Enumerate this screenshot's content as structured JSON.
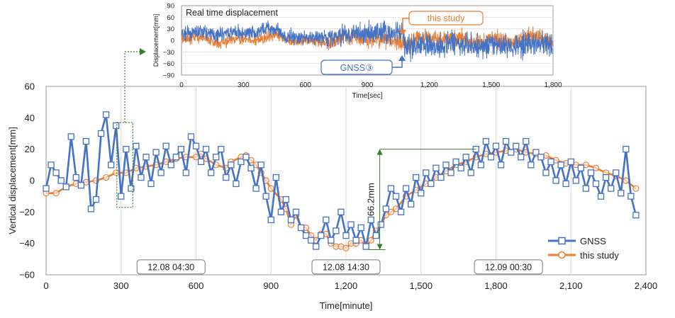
{
  "chart_data": [
    {
      "type": "line",
      "title": "",
      "xlabel": "Time[minute]",
      "ylabel": "Vertical displacement[mm]",
      "xlim": [
        0,
        2400
      ],
      "ylim": [
        -60,
        60
      ],
      "x_ticks": [
        "0",
        "300",
        "600",
        "900",
        "1,200",
        "1,500",
        "1,800",
        "2,100",
        "2,400"
      ],
      "y_ticks": [
        "60",
        "40",
        "20",
        "0",
        "−20",
        "−40",
        "−60"
      ],
      "grid": "vertical",
      "legend_position": "bottom-right",
      "series": [
        {
          "name": "GNSS",
          "color": "#4472C4",
          "marker": "square",
          "points": [
            [
              0,
              -5
            ],
            [
              20,
              10
            ],
            [
              40,
              5
            ],
            [
              60,
              0
            ],
            [
              80,
              -4
            ],
            [
              100,
              28
            ],
            [
              120,
              2
            ],
            [
              140,
              -3
            ],
            [
              160,
              25
            ],
            [
              180,
              -18
            ],
            [
              200,
              -12
            ],
            [
              220,
              30
            ],
            [
              240,
              42
            ],
            [
              260,
              10
            ],
            [
              280,
              35
            ],
            [
              300,
              -10
            ],
            [
              320,
              20
            ],
            [
              340,
              -5
            ],
            [
              360,
              22
            ],
            [
              380,
              2
            ],
            [
              400,
              15
            ],
            [
              420,
              -2
            ],
            [
              440,
              18
            ],
            [
              460,
              5
            ],
            [
              480,
              22
            ],
            [
              500,
              10
            ],
            [
              520,
              15
            ],
            [
              540,
              20
            ],
            [
              560,
              5
            ],
            [
              580,
              28
            ],
            [
              600,
              22
            ],
            [
              620,
              12
            ],
            [
              640,
              20
            ],
            [
              660,
              5
            ],
            [
              680,
              15
            ],
            [
              700,
              20
            ],
            [
              720,
              2
            ],
            [
              740,
              10
            ],
            [
              760,
              -2
            ],
            [
              780,
              12
            ],
            [
              800,
              15
            ],
            [
              820,
              8
            ],
            [
              840,
              -5
            ],
            [
              860,
              10
            ],
            [
              880,
              -10
            ],
            [
              900,
              -25
            ],
            [
              920,
              2
            ],
            [
              940,
              -20
            ],
            [
              960,
              -12
            ],
            [
              980,
              -25
            ],
            [
              1000,
              -20
            ],
            [
              1020,
              -30
            ],
            [
              1040,
              -35
            ],
            [
              1060,
              -38
            ],
            [
              1080,
              -42
            ],
            [
              1100,
              -35
            ],
            [
              1120,
              -25
            ],
            [
              1140,
              -38
            ],
            [
              1160,
              -32
            ],
            [
              1180,
              -20
            ],
            [
              1200,
              -35
            ],
            [
              1220,
              -28
            ],
            [
              1240,
              -38
            ],
            [
              1260,
              -30
            ],
            [
              1280,
              -42
            ],
            [
              1300,
              -25
            ],
            [
              1320,
              -35
            ],
            [
              1340,
              -28
            ],
            [
              1360,
              -18
            ],
            [
              1380,
              -5
            ],
            [
              1400,
              -10
            ],
            [
              1420,
              -20
            ],
            [
              1440,
              -5
            ],
            [
              1460,
              -15
            ],
            [
              1480,
              2
            ],
            [
              1500,
              -8
            ],
            [
              1520,
              5
            ],
            [
              1540,
              -2
            ],
            [
              1560,
              8
            ],
            [
              1580,
              2
            ],
            [
              1600,
              10
            ],
            [
              1620,
              5
            ],
            [
              1640,
              12
            ],
            [
              1660,
              8
            ],
            [
              1680,
              15
            ],
            [
              1700,
              5
            ],
            [
              1720,
              20
            ],
            [
              1740,
              10
            ],
            [
              1760,
              25
            ],
            [
              1780,
              15
            ],
            [
              1800,
              22
            ],
            [
              1820,
              10
            ],
            [
              1840,
              25
            ],
            [
              1860,
              18
            ],
            [
              1880,
              22
            ],
            [
              1900,
              15
            ],
            [
              1920,
              25
            ],
            [
              1940,
              10
            ],
            [
              1960,
              18
            ],
            [
              1980,
              15
            ],
            [
              2000,
              5
            ],
            [
              2020,
              12
            ],
            [
              2040,
              0
            ],
            [
              2060,
              10
            ],
            [
              2080,
              -2
            ],
            [
              2100,
              12
            ],
            [
              2120,
              0
            ],
            [
              2140,
              8
            ],
            [
              2160,
              -5
            ],
            [
              2180,
              5
            ],
            [
              2200,
              -2
            ],
            [
              2220,
              -10
            ],
            [
              2240,
              2
            ],
            [
              2260,
              -5
            ],
            [
              2280,
              5
            ],
            [
              2300,
              -8
            ],
            [
              2320,
              20
            ],
            [
              2340,
              -10
            ],
            [
              2360,
              -22
            ]
          ]
        },
        {
          "name": "this study",
          "color": "#ED7D31",
          "marker": "circle",
          "points": [
            [
              0,
              -8
            ],
            [
              40,
              -8
            ],
            [
              80,
              -4
            ],
            [
              120,
              -2
            ],
            [
              160,
              -1
            ],
            [
              200,
              0
            ],
            [
              240,
              2
            ],
            [
              280,
              5
            ],
            [
              320,
              5
            ],
            [
              360,
              8
            ],
            [
              400,
              9
            ],
            [
              440,
              10
            ],
            [
              480,
              12
            ],
            [
              520,
              14
            ],
            [
              560,
              15
            ],
            [
              600,
              15
            ],
            [
              620,
              17
            ],
            [
              640,
              14
            ],
            [
              680,
              10
            ],
            [
              720,
              8
            ],
            [
              740,
              12
            ],
            [
              780,
              15
            ],
            [
              800,
              16
            ],
            [
              820,
              13
            ],
            [
              840,
              10
            ],
            [
              860,
              5
            ],
            [
              880,
              0
            ],
            [
              900,
              -5
            ],
            [
              940,
              -12
            ],
            [
              960,
              -18
            ],
            [
              980,
              -28
            ],
            [
              1000,
              -22
            ],
            [
              1020,
              -30
            ],
            [
              1040,
              -30
            ],
            [
              1060,
              -35
            ],
            [
              1080,
              -38
            ],
            [
              1100,
              -34
            ],
            [
              1120,
              -34
            ],
            [
              1140,
              -40
            ],
            [
              1160,
              -42
            ],
            [
              1180,
              -42
            ],
            [
              1200,
              -43
            ],
            [
              1220,
              -40
            ],
            [
              1240,
              -40
            ],
            [
              1260,
              -38
            ],
            [
              1280,
              -42
            ],
            [
              1300,
              -38
            ],
            [
              1320,
              -32
            ],
            [
              1340,
              -28
            ],
            [
              1360,
              -22
            ],
            [
              1380,
              -20
            ],
            [
              1400,
              -18
            ],
            [
              1440,
              -10
            ],
            [
              1480,
              -6
            ],
            [
              1520,
              -2
            ],
            [
              1560,
              2
            ],
            [
              1600,
              6
            ],
            [
              1640,
              10
            ],
            [
              1680,
              12
            ],
            [
              1720,
              15
            ],
            [
              1760,
              17
            ],
            [
              1800,
              18
            ],
            [
              1840,
              19
            ],
            [
              1880,
              20
            ],
            [
              1920,
              18
            ],
            [
              1960,
              17
            ],
            [
              2000,
              16
            ],
            [
              2040,
              13
            ],
            [
              2080,
              11
            ],
            [
              2120,
              10
            ],
            [
              2160,
              10
            ],
            [
              2200,
              8
            ],
            [
              2240,
              5
            ],
            [
              2280,
              3
            ],
            [
              2320,
              0
            ],
            [
              2360,
              -5
            ]
          ]
        }
      ],
      "annotations": [
        {
          "text": "12.08 04:30",
          "x": 500,
          "y": -55
        },
        {
          "text": "12.08 14:30",
          "x": 1200,
          "y": -55
        },
        {
          "text": "12.09 00:30",
          "x": 1850,
          "y": -55
        },
        {
          "text": "66.2mm",
          "x": 1335,
          "y": -12
        }
      ],
      "range_marker": {
        "x": 1335,
        "y_top": 20,
        "y_bottom": -44
      },
      "highlight_x_range": [
        300,
        330
      ]
    },
    {
      "type": "line",
      "title": "Real time displacement",
      "xlabel": "Time[sec]",
      "ylabel": "Displacement[mm]",
      "xlim": [
        0,
        1800
      ],
      "ylim": [
        -90,
        90
      ],
      "x_ticks": [
        "0",
        "300",
        "600",
        "900",
        "1,200",
        "1,500",
        "1,800"
      ],
      "y_ticks": [
        "90",
        "60",
        "30",
        "0",
        "−30",
        "−60",
        "−90"
      ],
      "series": [
        {
          "name": "this study",
          "color": "#ED7D31"
        },
        {
          "name": "GNSS③",
          "color": "#4472C4"
        }
      ]
    }
  ]
}
